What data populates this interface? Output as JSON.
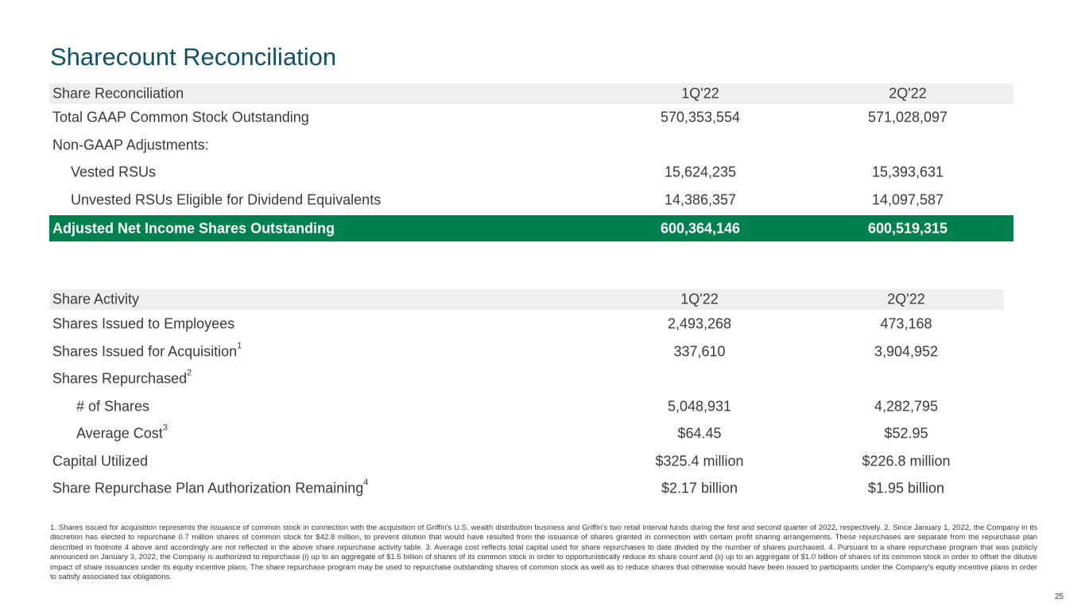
{
  "title": "Sharecount Reconciliation",
  "reconciliation": {
    "header": {
      "label": "Share Reconciliation",
      "col1": "1Q'22",
      "col2": "2Q'22"
    },
    "rows": [
      {
        "label": "Total GAAP Common Stock Outstanding",
        "col1": "570,353,554",
        "col2": "571,028,097"
      },
      {
        "label": "Non-GAAP Adjustments:",
        "col1": "",
        "col2": ""
      },
      {
        "label": "Vested RSUs",
        "col1": "15,624,235",
        "col2": "15,393,631"
      },
      {
        "label": "Unvested RSUs Eligible for Dividend Equivalents",
        "col1": "14,386,357",
        "col2": "14,097,587"
      }
    ],
    "total": {
      "label": "Adjusted Net Income Shares Outstanding",
      "col1": "600,364,146",
      "col2": "600,519,315"
    }
  },
  "activity": {
    "header": {
      "label": "Share Activity",
      "col1": "1Q'22",
      "col2": "2Q'22"
    },
    "rows": [
      {
        "label": "Shares Issued to Employees",
        "sup": "",
        "col1": "2,493,268",
        "col2": "473,168"
      },
      {
        "label": "Shares Issued for Acquisition",
        "sup": "1",
        "col1": "337,610",
        "col2": "3,904,952"
      },
      {
        "label": "Shares Repurchased",
        "sup": "2",
        "col1": "",
        "col2": ""
      },
      {
        "label": "# of Shares",
        "sup": "",
        "col1": "5,048,931",
        "col2": "4,282,795"
      },
      {
        "label": "Average Cost",
        "sup": "3",
        "col1": "$64.45",
        "col2": "$52.95"
      },
      {
        "label": "Capital Utilized",
        "sup": "",
        "col1": "$325.4 million",
        "col2": "$226.8 million"
      },
      {
        "label": "Share Repurchase Plan Authorization Remaining",
        "sup": "4",
        "col1": "$2.17 billion",
        "col2": "$1.95 billion"
      }
    ]
  },
  "footnotes": "1. Shares issued for acquisition represents the issuance of common stock in connection with the acquisition of Griffin's U.S. wealth distribution business and Griffin's two retail interval funds during the first and second quarter of 2022, respectively. 2. Since January 1, 2022, the Company in its discretion has elected to repurchase 0.7 million shares of common stock for $42.8 million, to prevent dilution that would have resulted from the issuance of shares granted in connection with certain profit sharing arrangements. These repurchases are separate from the repurchase plan described in footnote 4 above and accordingly are not reflected in the above share repurchase activity table. 3. Average cost reflects total capital used for share repurchases to date divided by the number of shares purchased. 4. Pursuant to a share repurchase program that was publicly announced on January 3, 2022, the Company is authorized to repurchase (i) up to an aggregate of $1.5 billion of shares of its common stock in order to opportunistically reduce its share count and (ii) up to an aggregate of $1.0 billion of shares of its common stock in order to offset the dilutive impact of share issuances under its equity incentive plans. The share repurchase program may be used to repurchase outstanding shares of common stock as well as to reduce shares that otherwise would have been issued to participants under the Company's equity incentive plans in order to satisfy associated tax obligations.",
  "page_number": "25",
  "colors": {
    "title": "#0e5365",
    "total_row": "#00804f",
    "header_row": "#efefef"
  }
}
